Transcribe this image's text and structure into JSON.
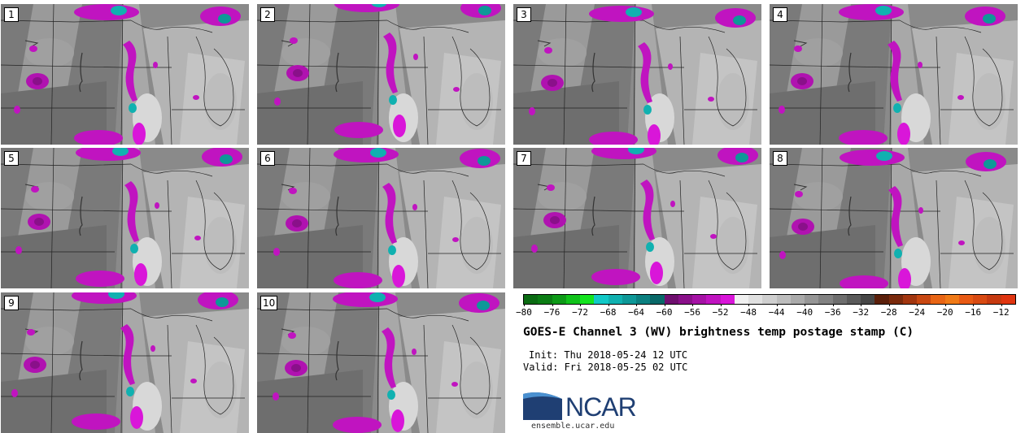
{
  "figure": {
    "title": "GOES-E Channel 3 (WV) brightness temp postage stamp (C)",
    "init": "Init: Thu 2018-05-24 12 UTC",
    "valid": "Valid: Fri 2018-05-25 02 UTC"
  },
  "members": [
    "1",
    "2",
    "3",
    "4",
    "5",
    "6",
    "7",
    "8",
    "9",
    "10"
  ],
  "colorbar": {
    "ticks": [
      "−80",
      "−76",
      "−72",
      "−68",
      "−64",
      "−60",
      "−56",
      "−52",
      "−48",
      "−44",
      "−40",
      "−36",
      "−32",
      "−28",
      "−24",
      "−20",
      "−16",
      "−12"
    ],
    "range": [
      -80,
      -10
    ],
    "colors": [
      "#0a6b12",
      "#0b7d14",
      "#0d9a17",
      "#10c21a",
      "#14e41f",
      "#11c9c7",
      "#10b1b0",
      "#0e9898",
      "#0b8080",
      "#086868",
      "#6f0f6f",
      "#8a108a",
      "#a512a5",
      "#c014c0",
      "#d916d9",
      "#f0f0f0",
      "#e0e0e0",
      "#cfcfcf",
      "#bdbdbd",
      "#aaaaaa",
      "#969696",
      "#828282",
      "#6e6e6e",
      "#5a5a5a",
      "#464646",
      "#5a1f0a",
      "#7a2a0c",
      "#a2360f",
      "#c84812",
      "#e86515",
      "#f07a17",
      "#e85a14",
      "#d84a12",
      "#c63a10",
      "#e03510"
    ]
  },
  "branding": {
    "logo_text": "NCAR",
    "site": "ensemble.ucar.edu"
  }
}
